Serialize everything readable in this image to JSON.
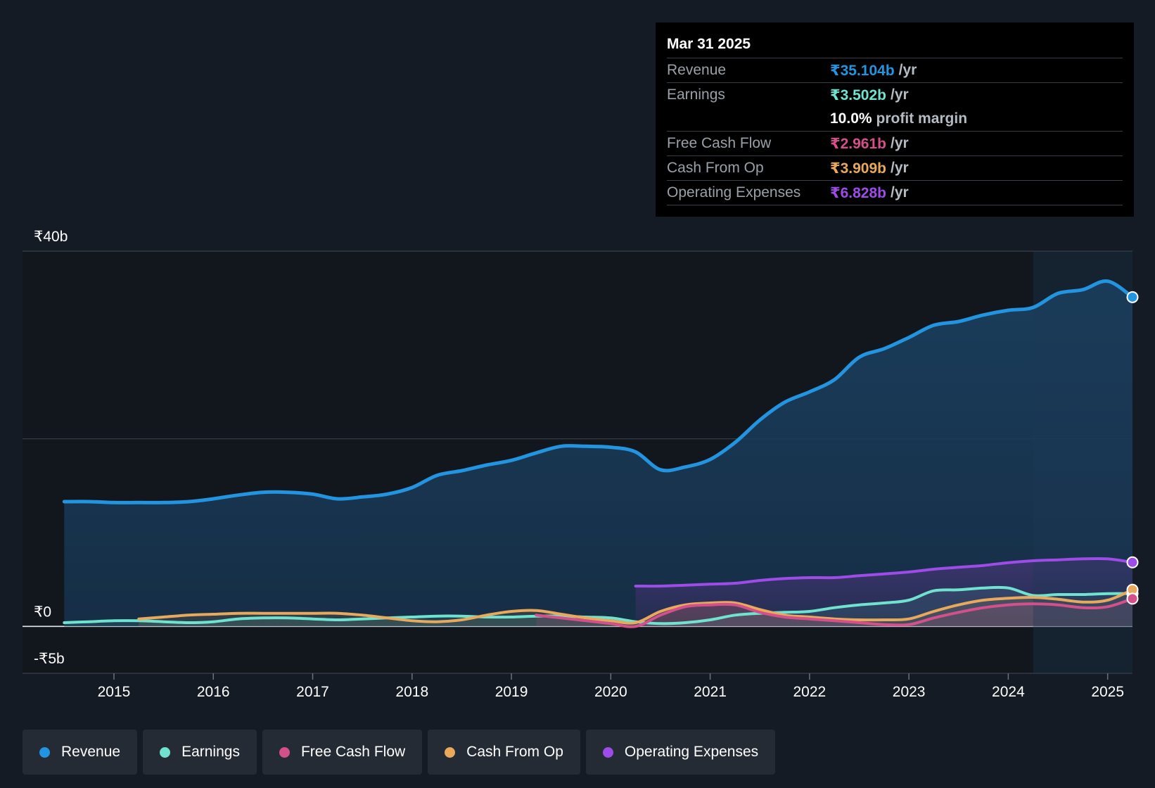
{
  "tooltip": {
    "date": "Mar 31 2025",
    "rows": [
      {
        "label": "Revenue",
        "value": "₹35.104b",
        "unit": "/yr",
        "color": "#2394df"
      },
      {
        "label": "Earnings",
        "value": "₹3.502b",
        "unit": "/yr",
        "color": "#6fe3d0"
      },
      {
        "label": "",
        "value": "10.0%",
        "unit": "profit margin",
        "color": "#ffffff"
      },
      {
        "label": "Free Cash Flow",
        "value": "₹2.961b",
        "unit": "/yr",
        "color": "#d4508a"
      },
      {
        "label": "Cash From Op",
        "value": "₹3.909b",
        "unit": "/yr",
        "color": "#e8a95c"
      },
      {
        "label": "Operating Expenses",
        "value": "₹6.828b",
        "unit": "/yr",
        "color": "#9d4ce8"
      }
    ]
  },
  "legend": [
    {
      "label": "Revenue",
      "color": "#2394df"
    },
    {
      "label": "Earnings",
      "color": "#6fe3d0"
    },
    {
      "label": "Free Cash Flow",
      "color": "#d4508a"
    },
    {
      "label": "Cash From Op",
      "color": "#e8a95c"
    },
    {
      "label": "Operating Expenses",
      "color": "#9d4ce8"
    }
  ],
  "chart_data": {
    "type": "area",
    "title": "",
    "xlabel": "",
    "ylabel": "",
    "ylim": [
      -5,
      40
    ],
    "xlim": [
      2014.08,
      2025.25
    ],
    "y_tick_labels": [
      {
        "value": 40,
        "label": "₹40b"
      },
      {
        "value": 0,
        "label": "₹0"
      },
      {
        "value": -5,
        "label": "-₹5b"
      }
    ],
    "gridlines": [
      40,
      20,
      0
    ],
    "x_ticks": [
      2015,
      2016,
      2017,
      2018,
      2019,
      2020,
      2021,
      2022,
      2023,
      2024,
      2025
    ],
    "x_tick_labels": [
      "2015",
      "2016",
      "2017",
      "2018",
      "2019",
      "2020",
      "2021",
      "2022",
      "2023",
      "2024",
      "2025"
    ],
    "highlight_start": 2024.25,
    "series": [
      {
        "name": "Revenue",
        "color": "#2394df",
        "x": [
          2014.5,
          2014.75,
          2015.0,
          2015.25,
          2015.5,
          2015.75,
          2016.0,
          2016.25,
          2016.5,
          2016.75,
          2017.0,
          2017.25,
          2017.5,
          2017.75,
          2018.0,
          2018.25,
          2018.5,
          2018.75,
          2019.0,
          2019.25,
          2019.5,
          2019.75,
          2020.0,
          2020.25,
          2020.5,
          2020.75,
          2021.0,
          2021.25,
          2021.5,
          2021.75,
          2022.0,
          2022.25,
          2022.5,
          2022.75,
          2023.0,
          2023.25,
          2023.5,
          2023.75,
          2024.0,
          2024.25,
          2024.5,
          2024.75,
          2025.0,
          2025.25
        ],
        "values": [
          13.3,
          13.3,
          13.2,
          13.2,
          13.2,
          13.3,
          13.6,
          14.0,
          14.3,
          14.3,
          14.1,
          13.6,
          13.8,
          14.1,
          14.8,
          16.1,
          16.6,
          17.2,
          17.7,
          18.5,
          19.2,
          19.2,
          19.1,
          18.6,
          16.7,
          17.0,
          17.8,
          19.6,
          22.0,
          23.9,
          25.0,
          26.3,
          28.7,
          29.6,
          30.8,
          32.1,
          32.5,
          33.2,
          33.7,
          34.0,
          35.5,
          35.9,
          36.8,
          35.1
        ]
      },
      {
        "name": "Earnings",
        "color": "#6fe3d0",
        "x": [
          2014.5,
          2014.75,
          2015.0,
          2015.25,
          2015.5,
          2015.75,
          2016.0,
          2016.25,
          2016.5,
          2016.75,
          2017.0,
          2017.25,
          2017.5,
          2017.75,
          2018.0,
          2018.25,
          2018.5,
          2018.75,
          2019.0,
          2019.25,
          2019.5,
          2019.75,
          2020.0,
          2020.25,
          2020.5,
          2020.75,
          2021.0,
          2021.25,
          2021.5,
          2021.75,
          2022.0,
          2022.25,
          2022.5,
          2022.75,
          2023.0,
          2023.25,
          2023.5,
          2023.75,
          2024.0,
          2024.25,
          2024.5,
          2024.75,
          2025.0,
          2025.25
        ],
        "values": [
          0.4,
          0.5,
          0.6,
          0.6,
          0.5,
          0.4,
          0.5,
          0.8,
          0.9,
          0.9,
          0.8,
          0.7,
          0.8,
          0.9,
          1.0,
          1.1,
          1.1,
          1.0,
          1.0,
          1.1,
          1.1,
          1.0,
          0.9,
          0.5,
          0.3,
          0.4,
          0.7,
          1.2,
          1.4,
          1.5,
          1.6,
          2.0,
          2.3,
          2.5,
          2.8,
          3.8,
          3.9,
          4.1,
          4.1,
          3.3,
          3.4,
          3.4,
          3.5,
          3.5
        ]
      },
      {
        "name": "Free Cash Flow",
        "color": "#d4508a",
        "x": [
          2019.25,
          2019.5,
          2019.75,
          2020.0,
          2020.25,
          2020.5,
          2020.75,
          2021.0,
          2021.25,
          2021.5,
          2021.75,
          2022.0,
          2022.25,
          2022.5,
          2022.75,
          2023.0,
          2023.25,
          2023.5,
          2023.75,
          2024.0,
          2024.25,
          2024.5,
          2024.75,
          2025.0,
          2025.25
        ],
        "values": [
          1.2,
          0.9,
          0.6,
          0.3,
          0.0,
          1.2,
          2.1,
          2.3,
          2.3,
          1.5,
          1.0,
          0.8,
          0.6,
          0.4,
          0.2,
          0.2,
          0.9,
          1.5,
          2.0,
          2.3,
          2.4,
          2.3,
          2.0,
          2.1,
          2.961
        ]
      },
      {
        "name": "Cash From Op",
        "color": "#e8a95c",
        "x": [
          2015.25,
          2015.5,
          2015.75,
          2016.0,
          2016.25,
          2016.5,
          2016.75,
          2017.0,
          2017.25,
          2017.5,
          2017.75,
          2018.0,
          2018.25,
          2018.5,
          2018.75,
          2019.0,
          2019.25,
          2019.5,
          2019.75,
          2020.0,
          2020.25,
          2020.5,
          2020.75,
          2021.0,
          2021.25,
          2021.5,
          2021.75,
          2022.0,
          2022.25,
          2022.5,
          2022.75,
          2023.0,
          2023.25,
          2023.5,
          2023.75,
          2024.0,
          2024.25,
          2024.5,
          2024.75,
          2025.0,
          2025.25
        ],
        "values": [
          0.8,
          1.0,
          1.2,
          1.3,
          1.4,
          1.4,
          1.4,
          1.4,
          1.4,
          1.2,
          0.9,
          0.6,
          0.5,
          0.7,
          1.2,
          1.6,
          1.7,
          1.3,
          0.9,
          0.6,
          0.4,
          1.6,
          2.3,
          2.5,
          2.5,
          1.8,
          1.2,
          1.0,
          0.8,
          0.7,
          0.7,
          0.8,
          1.6,
          2.3,
          2.8,
          3.0,
          3.1,
          2.9,
          2.6,
          2.8,
          3.909
        ]
      },
      {
        "name": "Operating Expenses",
        "color": "#9d4ce8",
        "x": [
          2020.25,
          2020.5,
          2020.75,
          2021.0,
          2021.25,
          2021.5,
          2021.75,
          2022.0,
          2022.25,
          2022.5,
          2022.75,
          2023.0,
          2023.25,
          2023.5,
          2023.75,
          2024.0,
          2024.25,
          2024.5,
          2024.75,
          2025.0,
          2025.25
        ],
        "values": [
          4.3,
          4.3,
          4.4,
          4.5,
          4.6,
          4.9,
          5.1,
          5.2,
          5.2,
          5.4,
          5.6,
          5.8,
          6.1,
          6.3,
          6.5,
          6.8,
          7.0,
          7.1,
          7.2,
          7.2,
          6.828
        ]
      }
    ]
  }
}
